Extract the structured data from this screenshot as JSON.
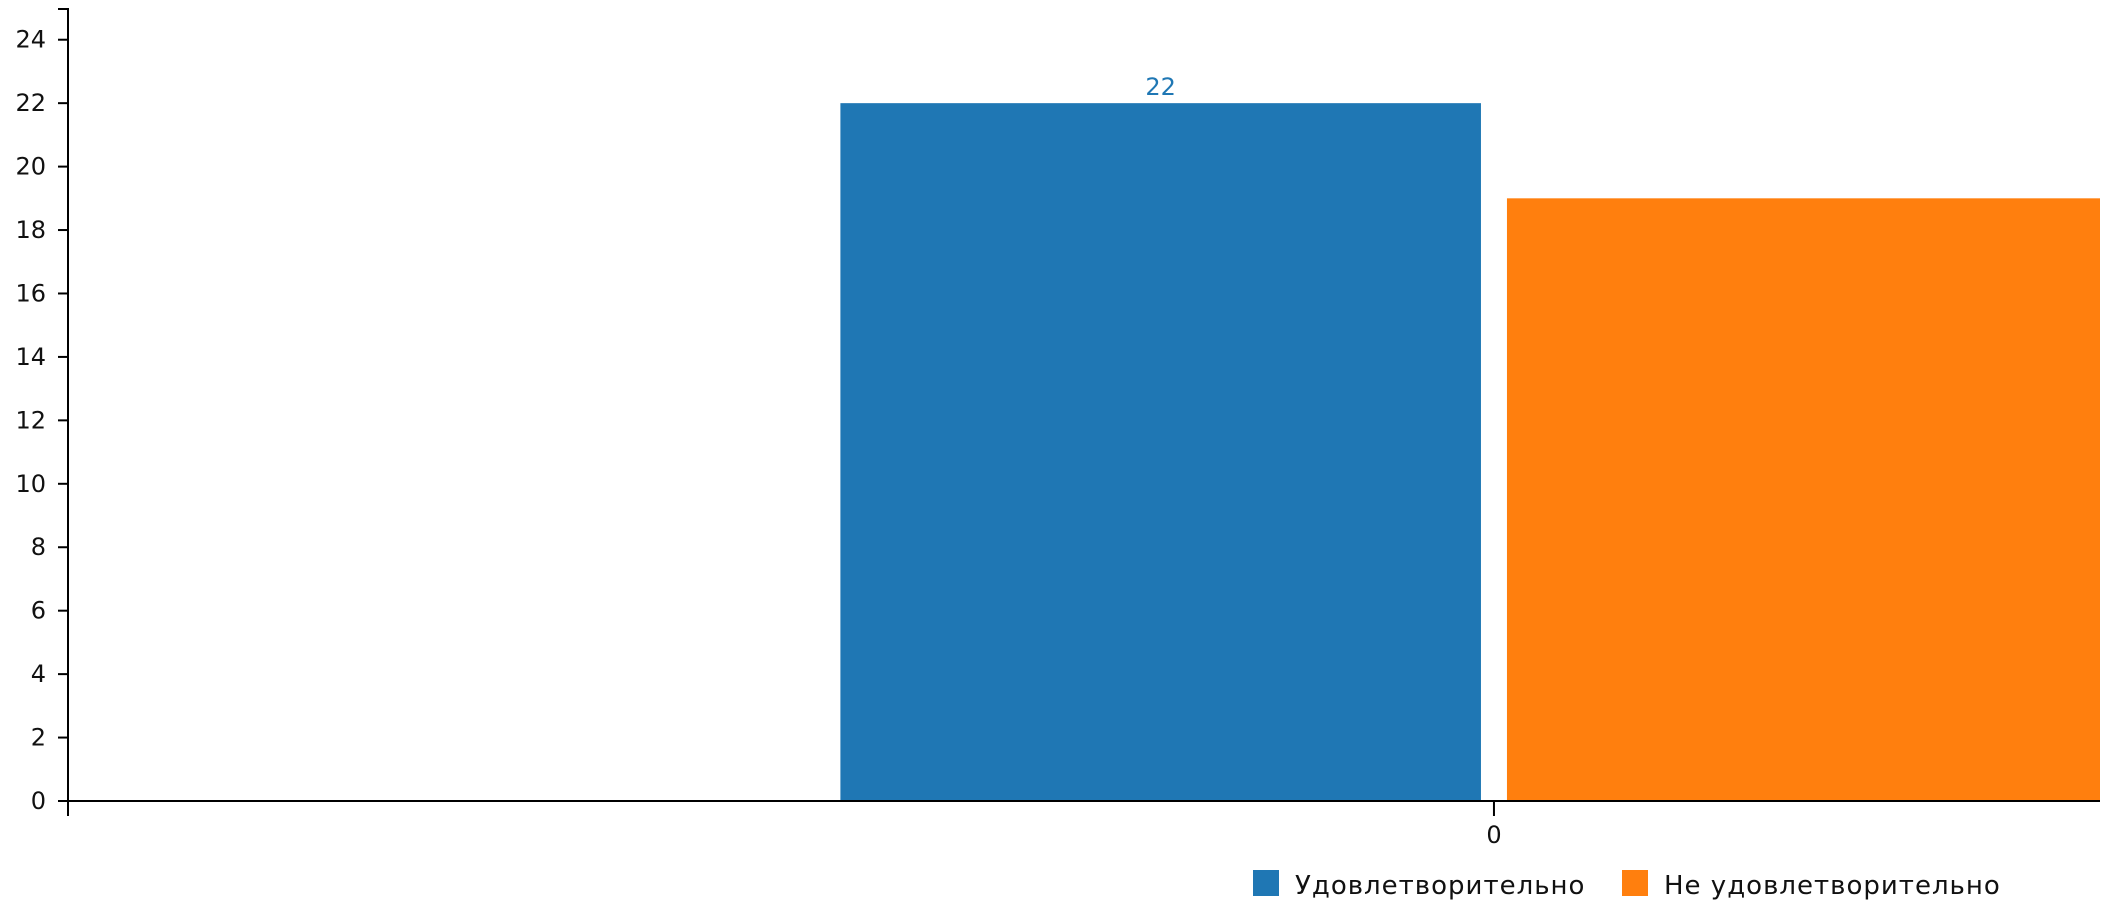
{
  "chart_data": {
    "type": "bar",
    "x": [
      0
    ],
    "xlim": [
      -1.2,
      0.51
    ],
    "ylim": [
      0,
      25
    ],
    "y_ticks": [
      0,
      2,
      4,
      6,
      8,
      10,
      12,
      14,
      16,
      18,
      20,
      22,
      24
    ],
    "x_tick_labels": [
      "0"
    ],
    "legend_position": "bottom-right",
    "grid": false,
    "series": [
      {
        "name": "Удовлетворительно",
        "values": [
          22
        ],
        "color": "#1f77b4",
        "data_labels": [
          "22"
        ]
      },
      {
        "name": "Не удовлетворительно",
        "values": [
          19
        ],
        "color": "#ff7f0e",
        "data_labels": []
      }
    ],
    "title": "",
    "xlabel": "",
    "ylabel": ""
  }
}
